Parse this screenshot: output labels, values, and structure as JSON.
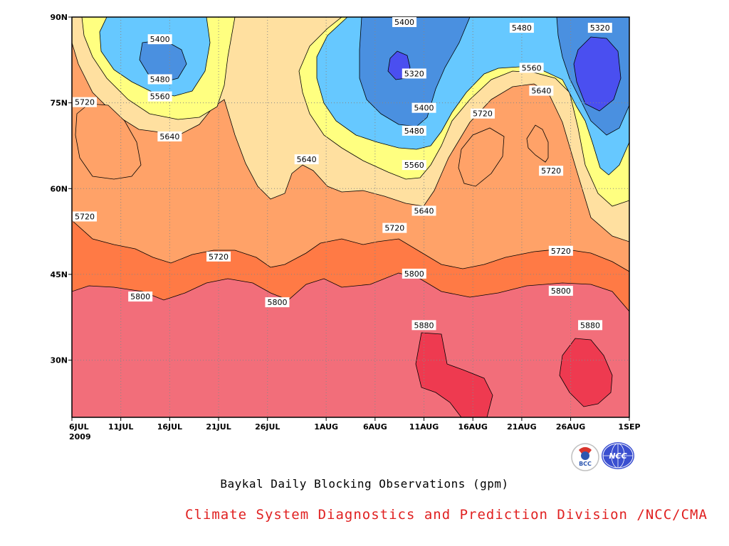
{
  "chart_data": {
    "type": "heatmap",
    "title": "Baykal Daily Blocking Observations (gpm)",
    "x_ticks": [
      "6JUL",
      "11JUL",
      "16JUL",
      "21JUL",
      "26JUL",
      "1AUG",
      "6AUG",
      "11AUG",
      "16AUG",
      "21AUG",
      "26AUG",
      "1SEP"
    ],
    "x_year": "2009",
    "y_ticks": [
      "90N",
      "75N",
      "60N",
      "45N",
      "30N"
    ],
    "ylim": [
      20,
      90
    ],
    "xlim": [
      "2009-07-06",
      "2009-09-01"
    ],
    "contour_interval": 80,
    "contour_levels": [
      5320,
      5400,
      5480,
      5560,
      5640,
      5720,
      5800,
      5880
    ],
    "contour_labels": [
      {
        "value": "5400",
        "x": "2009-07-15",
        "y": 86
      },
      {
        "value": "5480",
        "x": "2009-07-15",
        "y": 79
      },
      {
        "value": "5560",
        "x": "2009-07-15",
        "y": 76
      },
      {
        "value": "5640",
        "x": "2009-07-16",
        "y": 69
      },
      {
        "value": "5720",
        "x": "2009-07-07",
        "y": 75
      },
      {
        "value": "5720",
        "x": "2009-07-06",
        "y": 55
      },
      {
        "value": "5640",
        "x": "2009-07-30",
        "y": 65
      },
      {
        "value": "5720",
        "x": "2009-07-21",
        "y": 48
      },
      {
        "value": "5800",
        "x": "2009-07-13",
        "y": 41
      },
      {
        "value": "5800",
        "x": "2009-07-27",
        "y": 40
      },
      {
        "value": "5400",
        "x": "2009-08-09",
        "y": 89
      },
      {
        "value": "5320",
        "x": "2009-08-10",
        "y": 80
      },
      {
        "value": "5400",
        "x": "2009-08-11",
        "y": 74
      },
      {
        "value": "5480",
        "x": "2009-08-10",
        "y": 70
      },
      {
        "value": "5560",
        "x": "2009-08-10",
        "y": 64
      },
      {
        "value": "5640",
        "x": "2009-08-11",
        "y": 56
      },
      {
        "value": "5720",
        "x": "2009-08-08",
        "y": 53
      },
      {
        "value": "5800",
        "x": "2009-08-10",
        "y": 45
      },
      {
        "value": "5880",
        "x": "2009-08-11",
        "y": 36
      },
      {
        "value": "5720",
        "x": "2009-08-17",
        "y": 73
      },
      {
        "value": "5480",
        "x": "2009-08-21",
        "y": 88
      },
      {
        "value": "5560",
        "x": "2009-08-22",
        "y": 81
      },
      {
        "value": "5640",
        "x": "2009-08-23",
        "y": 77
      },
      {
        "value": "5720",
        "x": "2009-08-24",
        "y": 63
      },
      {
        "value": "5720",
        "x": "2009-08-25",
        "y": 49
      },
      {
        "value": "5800",
        "x": "2009-08-25",
        "y": 42
      },
      {
        "value": "5320",
        "x": "2009-08-29",
        "y": 88
      },
      {
        "value": "5880",
        "x": "2009-08-28",
        "y": 36
      }
    ],
    "colors": {
      "5880_plus": "#ee3a50",
      "5800_5880": "#f26e7a",
      "5720_5800": "#ff7a45",
      "5640_5720": "#ffa268",
      "5560_5640": "#ffe0a0",
      "5480_5560": "#ffff80",
      "5400_5480": "#66c8ff",
      "5320_5400": "#4a90e0",
      "below_5320": "#4a4ff0"
    },
    "grid": true
  },
  "logos": {
    "bcc_label": "BCC",
    "ncc_label": "NCC"
  },
  "credit": {
    "text": "Climate System Diagnostics and Prediction Division /NCC/CMA",
    "color": "#e02020"
  }
}
